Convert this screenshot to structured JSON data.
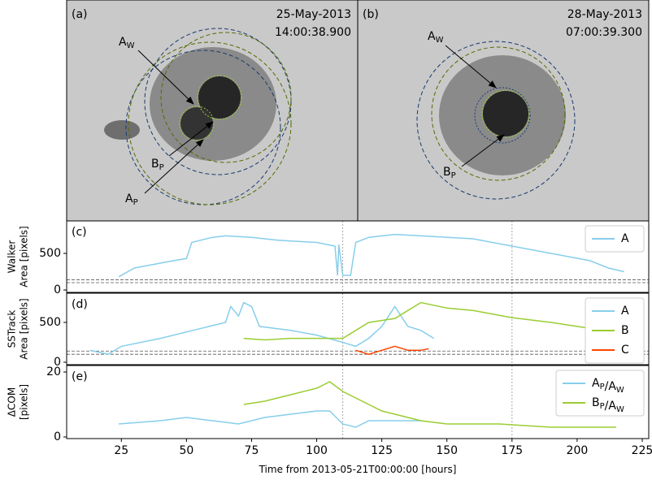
{
  "images": [
    {
      "panel": "(a)",
      "date": "25-May-2013",
      "time": "14:00:38.900",
      "labels": [
        "A_W",
        "B_P",
        "A_P"
      ]
    },
    {
      "panel": "(b)",
      "date": "28-May-2013",
      "time": "07:00:39.300",
      "labels": [
        "A_W",
        "B_P"
      ]
    }
  ],
  "chart_data": [
    {
      "type": "line",
      "panel": "(c)",
      "ylabel": [
        "Walker",
        "Area [pixels]"
      ],
      "xlim": [
        4,
        227.5
      ],
      "ylim": [
        -33,
        944
      ],
      "yticks": [
        0,
        500
      ],
      "hlines": [
        100,
        140
      ],
      "vlines": [
        110,
        175
      ],
      "legend": "upper right",
      "series": [
        {
          "name": "A",
          "color": "#87ceeb",
          "x": [
            24,
            30,
            45,
            50,
            52,
            60,
            65,
            75,
            85,
            100,
            107,
            108,
            108.5,
            110,
            113,
            115,
            120,
            130,
            140,
            160,
            175,
            190,
            205,
            212,
            218
          ],
          "values": [
            180,
            300,
            400,
            430,
            650,
            720,
            740,
            720,
            680,
            650,
            600,
            200,
            620,
            200,
            200,
            650,
            720,
            760,
            740,
            700,
            600,
            500,
            400,
            300,
            250
          ]
        }
      ]
    },
    {
      "type": "line",
      "panel": "(d)",
      "ylabel": [
        "SSTrack",
        "Area [pixels]"
      ],
      "xlim": [
        4,
        227.5
      ],
      "ylim": [
        -31,
        867
      ],
      "yticks": [
        0,
        500
      ],
      "hlines": [
        100,
        140
      ],
      "vlines": [
        110,
        175
      ],
      "legend": "upper right",
      "series": [
        {
          "name": "A",
          "color": "#87ceeb",
          "x": [
            13,
            20,
            25,
            40,
            55,
            65,
            67,
            70,
            72,
            75,
            78,
            90,
            100,
            110,
            115,
            120,
            125,
            130,
            135,
            140,
            145
          ],
          "values": [
            150,
            100,
            200,
            300,
            420,
            500,
            700,
            580,
            750,
            700,
            450,
            400,
            340,
            250,
            200,
            300,
            450,
            700,
            450,
            400,
            300
          ]
        },
        {
          "name": "B",
          "color": "#9acd32",
          "x": [
            72,
            80,
            90,
            100,
            110,
            115,
            120,
            130,
            135,
            140,
            150,
            160,
            175,
            190,
            200,
            210,
            215
          ],
          "values": [
            300,
            280,
            300,
            300,
            300,
            400,
            500,
            550,
            650,
            750,
            680,
            650,
            560,
            500,
            450,
            400,
            380
          ]
        },
        {
          "name": "C",
          "color": "#ff4500",
          "x": [
            115,
            120,
            125,
            130,
            135,
            140,
            143
          ],
          "values": [
            150,
            100,
            150,
            200,
            150,
            150,
            170
          ]
        }
      ]
    },
    {
      "type": "line",
      "panel": "(e)",
      "ylabel": [
        "ΔCOM",
        "[pixels]"
      ],
      "xlabel": "Time from 2013-05-21T00:00:00 [hours]",
      "xlim": [
        4,
        227.5
      ],
      "ylim": [
        -0.5,
        22
      ],
      "yticks": [
        0,
        20
      ],
      "xticks": [
        25,
        50,
        75,
        100,
        125,
        150,
        175,
        200,
        225
      ],
      "vlines": [
        110,
        175
      ],
      "legend": "upper right",
      "series": [
        {
          "name": "A_P/A_W",
          "color": "#87ceeb",
          "x": [
            24,
            40,
            50,
            60,
            70,
            80,
            90,
            100,
            105,
            110,
            115,
            120,
            130,
            140
          ],
          "values": [
            4,
            5,
            6,
            5,
            4,
            6,
            7,
            8,
            8,
            4,
            3,
            5,
            5,
            5
          ]
        },
        {
          "name": "B_P/A_W",
          "color": "#9acd32",
          "x": [
            72,
            80,
            90,
            100,
            105,
            110,
            115,
            120,
            125,
            130,
            140,
            150,
            170,
            190,
            210,
            215
          ],
          "values": [
            10,
            11,
            13,
            15,
            17,
            14,
            12,
            10,
            8,
            7,
            5,
            4,
            4,
            3,
            3,
            3
          ]
        }
      ]
    }
  ]
}
